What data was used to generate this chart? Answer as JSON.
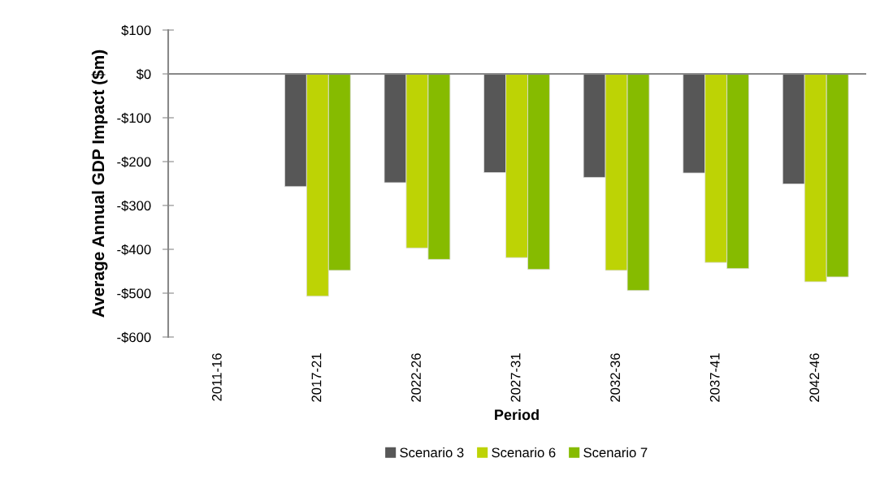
{
  "chart_data": {
    "type": "bar",
    "xlabel": "Period",
    "ylabel": "Average Annual GDP Impact ($m)",
    "categories": [
      "2011-16",
      "2017-21",
      "2022-26",
      "2027-31",
      "2032-36",
      "2037-41",
      "2042-46"
    ],
    "series": [
      {
        "name": "Scenario 3",
        "color": "#575757",
        "values": [
          null,
          -257,
          -248,
          -225,
          -236,
          -226,
          -251
        ]
      },
      {
        "name": "Scenario 6",
        "color": "#bdd305",
        "values": [
          null,
          -507,
          -397,
          -419,
          -448,
          -430,
          -474
        ]
      },
      {
        "name": "Scenario 7",
        "color": "#86bb00",
        "values": [
          null,
          -448,
          -423,
          -446,
          -494,
          -444,
          -463
        ]
      }
    ],
    "ylim": [
      -600,
      100
    ],
    "yticks": [
      {
        "value": 100,
        "label": "$100"
      },
      {
        "value": 0,
        "label": "$0"
      },
      {
        "value": -100,
        "label": "-$100"
      },
      {
        "value": -200,
        "label": "-$200"
      },
      {
        "value": -300,
        "label": "-$300"
      },
      {
        "value": -400,
        "label": "-$400"
      },
      {
        "value": -500,
        "label": "-$500"
      },
      {
        "value": -600,
        "label": "-$600"
      }
    ],
    "legend": "bottom"
  }
}
